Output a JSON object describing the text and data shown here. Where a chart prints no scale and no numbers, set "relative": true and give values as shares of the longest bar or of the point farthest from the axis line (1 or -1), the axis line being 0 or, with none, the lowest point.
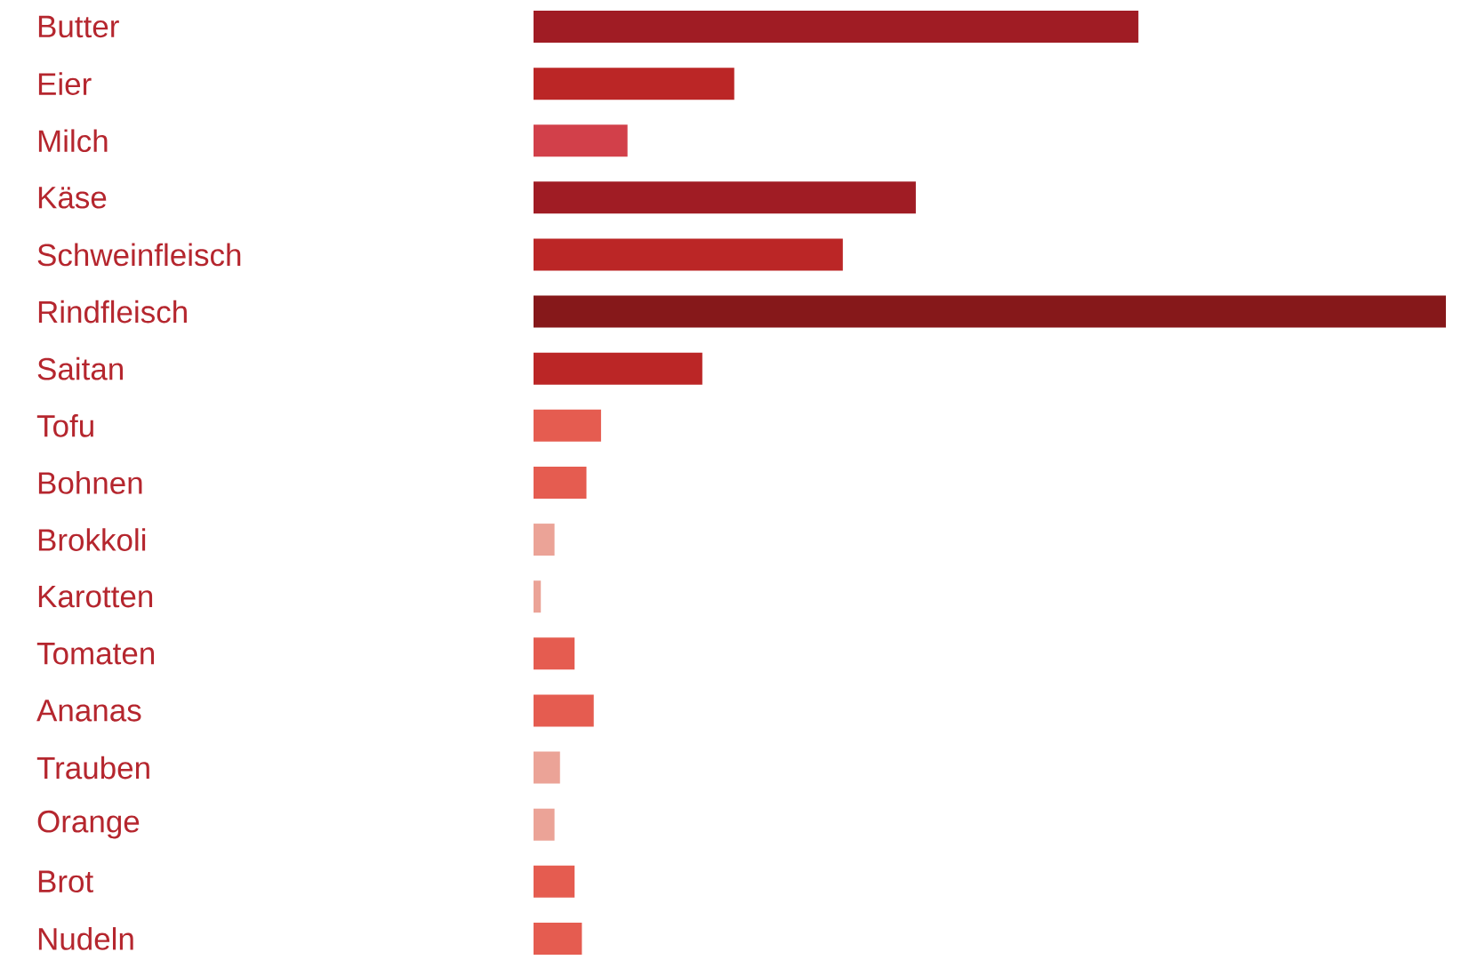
{
  "chart_data": {
    "type": "bar",
    "orientation": "horizontal",
    "relative": true,
    "categories": [
      "Butter",
      "Eier",
      "Milch",
      "Käse",
      "Schweinfleisch",
      "Rindfleisch",
      "Saitan",
      "Tofu",
      "Bohnen",
      "Brokkoli",
      "Karotten",
      "Tomaten",
      "Ananas",
      "Trauben",
      "Orange",
      "Brot",
      "Nudeln"
    ],
    "values": [
      0.663,
      0.22,
      0.103,
      0.419,
      0.339,
      1,
      0.185,
      0.074,
      0.058,
      0.023,
      0.008,
      0.045,
      0.066,
      0.029,
      0.023,
      0.045,
      0.053
    ],
    "colors": [
      "#a01c24",
      "#bb2626",
      "#d2404a",
      "#a01c24",
      "#bb2626",
      "#86181a",
      "#bb2626",
      "#e55c50",
      "#e55c50",
      "#eba397",
      "#eba397",
      "#e55c50",
      "#e55c50",
      "#eba397",
      "#eba397",
      "#e55c50",
      "#e55c50"
    ]
  }
}
